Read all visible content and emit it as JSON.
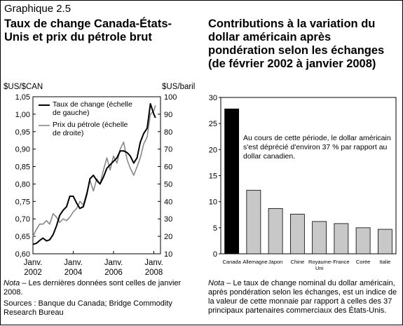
{
  "figure_label": "Graphique 2.5",
  "chart_data": [
    {
      "type": "line",
      "title": "Taux de change Canada-États-Unis et prix du pétrole brut",
      "ylabel_left": "$US/$CAN",
      "ylabel_right": "$US/baril",
      "y_left_range": [
        0.6,
        1.05
      ],
      "y_left_ticks": [
        "0,60",
        "0,65",
        "0,70",
        "0,75",
        "0,80",
        "0,85",
        "0,90",
        "0,95",
        "1,00",
        "1,05"
      ],
      "y_right_range": [
        10,
        100
      ],
      "y_right_ticks": [
        "10",
        "20",
        "30",
        "40",
        "50",
        "60",
        "70",
        "80",
        "90",
        "100"
      ],
      "x_range": [
        2002.0,
        2008.33
      ],
      "x_ticks": [
        {
          "pos": 2002,
          "label": [
            "Janv.",
            "2002"
          ]
        },
        {
          "pos": 2004,
          "label": [
            "Janv.",
            "2004"
          ]
        },
        {
          "pos": 2006,
          "label": [
            "Janv.",
            "2006"
          ]
        },
        {
          "pos": 2008,
          "label": [
            "Janv.",
            "2008"
          ]
        }
      ],
      "series": [
        {
          "name": "Taux de change (échelle de gauche)",
          "axis": "left",
          "color": "#000000",
          "x": [
            2002.0,
            2002.17,
            2002.33,
            2002.5,
            2002.67,
            2002.83,
            2003.0,
            2003.17,
            2003.33,
            2003.5,
            2003.67,
            2003.83,
            2004.0,
            2004.17,
            2004.33,
            2004.5,
            2004.67,
            2004.83,
            2005.0,
            2005.17,
            2005.33,
            2005.5,
            2005.67,
            2005.83,
            2006.0,
            2006.17,
            2006.33,
            2006.5,
            2006.67,
            2006.83,
            2007.0,
            2007.17,
            2007.33,
            2007.5,
            2007.67,
            2007.83,
            2008.0,
            2008.08
          ],
          "y": [
            0.627,
            0.63,
            0.638,
            0.645,
            0.637,
            0.64,
            0.655,
            0.68,
            0.71,
            0.725,
            0.735,
            0.765,
            0.765,
            0.745,
            0.73,
            0.735,
            0.77,
            0.815,
            0.825,
            0.81,
            0.8,
            0.82,
            0.845,
            0.855,
            0.865,
            0.875,
            0.895,
            0.895,
            0.89,
            0.88,
            0.86,
            0.875,
            0.92,
            0.945,
            0.96,
            1.03,
            1.0,
            0.99
          ]
        },
        {
          "name": "Prix du pétrole (échelle de droite)",
          "axis": "right",
          "color": "#888888",
          "x": [
            2002.0,
            2002.17,
            2002.33,
            2002.5,
            2002.67,
            2002.83,
            2003.0,
            2003.17,
            2003.33,
            2003.5,
            2003.67,
            2003.83,
            2004.0,
            2004.17,
            2004.33,
            2004.5,
            2004.67,
            2004.83,
            2005.0,
            2005.17,
            2005.33,
            2005.5,
            2005.67,
            2005.83,
            2006.0,
            2006.17,
            2006.33,
            2006.5,
            2006.67,
            2006.83,
            2007.0,
            2007.17,
            2007.33,
            2007.5,
            2007.67,
            2007.83,
            2008.0,
            2008.08
          ],
          "y": [
            20,
            24,
            27,
            27,
            29,
            27,
            33,
            31,
            28,
            30,
            29,
            31,
            34,
            36,
            40,
            38,
            45,
            52,
            46,
            53,
            50,
            58,
            65,
            58,
            66,
            62,
            70,
            74,
            64,
            59,
            55,
            60,
            65,
            73,
            77,
            90,
            92,
            95
          ]
        }
      ],
      "legend": "upper-left"
    },
    {
      "type": "bar",
      "title": "Contributions à la variation du dollar américain après pondération selon les échanges (de février 2002 à janvier 2008)",
      "ylim": [
        0,
        30
      ],
      "y_ticks": [
        "0",
        "5",
        "10",
        "15",
        "20",
        "25",
        "30"
      ],
      "categories": [
        "Canada",
        "Allemagne",
        "Japon",
        "Chine",
        "Royaume-Uni",
        "France",
        "Corée",
        "Italie"
      ],
      "values": [
        27.8,
        12.2,
        8.7,
        7.6,
        6.2,
        5.8,
        5.0,
        4.7
      ],
      "highlight": {
        "Canada": "#000000"
      },
      "bar_color": "#c8c8c8",
      "annotation": "Au cours de cette période, le dollar américain s'est déprécié d'environ 37 % par rapport au dollar canadien."
    }
  ],
  "notes": {
    "left_note_label": "Nota",
    "left_note_text": " – Les dernières données sont celles de janvier 2008.",
    "sources": "Sources : Banque du Canada; Bridge Commodity Research Bureau",
    "right_note_label": "Nota",
    "right_note_text": " – Le taux de change nominal du dollar américain, après pondération selon les échanges, est un indice de la valeur de cette monnaie par rapport à celles des 37 principaux partenaires commerciaux des États-Unis."
  }
}
